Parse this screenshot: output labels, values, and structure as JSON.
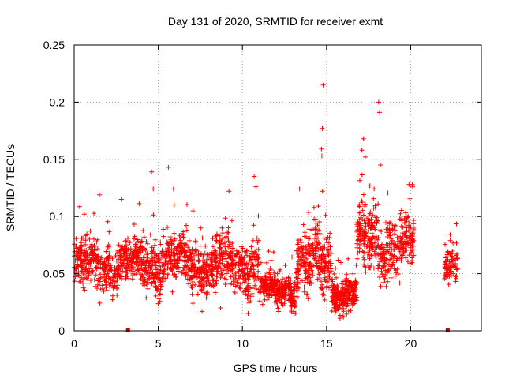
{
  "chart_data": {
    "type": "scatter",
    "title": "Day 131 of 2020, SRMTID for receiver exmt",
    "xlabel": "GPS time / hours",
    "ylabel": "SRMTID / TECUs",
    "xlim": [
      0,
      24.2
    ],
    "ylim": [
      0,
      0.25
    ],
    "xticks": [
      0,
      5,
      10,
      15,
      20
    ],
    "xtick_labels": [
      "0",
      "5",
      "10",
      "15",
      "20"
    ],
    "yticks": [
      0,
      0.05,
      0.1,
      0.15,
      0.2,
      0.25
    ],
    "ytick_labels": [
      "0",
      "0.05",
      "0.1",
      "0.15",
      "0.2",
      "0.25"
    ],
    "grid": true,
    "marker": "+",
    "colors": {
      "series": "#ff0000",
      "frame": "#000000",
      "grid": "#a0a0a0",
      "gap_marker": "#cc0000"
    },
    "gap_markers_x": [
      3.2,
      22.2
    ],
    "series": [
      {
        "name": "SRMTID",
        "segments": [
          {
            "start": 0.0,
            "end": 4.0,
            "base": 0.057,
            "amp": 0.012,
            "spread": 0.017,
            "count": 500
          },
          {
            "start": 4.0,
            "end": 7.0,
            "base": 0.06,
            "amp": 0.012,
            "spread": 0.019,
            "count": 380
          },
          {
            "start": 7.0,
            "end": 10.0,
            "base": 0.058,
            "amp": 0.012,
            "spread": 0.019,
            "count": 380
          },
          {
            "start": 10.0,
            "end": 11.0,
            "base": 0.055,
            "amp": 0.008,
            "spread": 0.02,
            "count": 130
          },
          {
            "start": 11.0,
            "end": 13.2,
            "base": 0.036,
            "amp": 0.006,
            "spread": 0.012,
            "count": 300
          },
          {
            "start": 13.2,
            "end": 15.3,
            "base": 0.058,
            "amp": 0.015,
            "spread": 0.022,
            "count": 280
          },
          {
            "start": 15.3,
            "end": 16.8,
            "base": 0.033,
            "amp": 0.005,
            "spread": 0.013,
            "count": 240
          },
          {
            "start": 16.8,
            "end": 18.0,
            "base": 0.08,
            "amp": 0.012,
            "spread": 0.024,
            "count": 170
          },
          {
            "start": 18.0,
            "end": 20.2,
            "base": 0.075,
            "amp": 0.012,
            "spread": 0.022,
            "count": 260
          },
          {
            "start": 22.0,
            "end": 22.8,
            "base": 0.055,
            "amp": 0.006,
            "spread": 0.014,
            "count": 75
          }
        ],
        "outliers": [
          {
            "x": 1.5,
            "y": 0.119
          },
          {
            "x": 2.8,
            "y": 0.115
          },
          {
            "x": 4.6,
            "y": 0.139
          },
          {
            "x": 4.7,
            "y": 0.124
          },
          {
            "x": 5.6,
            "y": 0.143
          },
          {
            "x": 5.9,
            "y": 0.124
          },
          {
            "x": 9.2,
            "y": 0.122
          },
          {
            "x": 10.7,
            "y": 0.135
          },
          {
            "x": 10.8,
            "y": 0.126
          },
          {
            "x": 14.8,
            "y": 0.215
          },
          {
            "x": 14.75,
            "y": 0.177
          },
          {
            "x": 14.7,
            "y": 0.159
          },
          {
            "x": 14.72,
            "y": 0.153
          },
          {
            "x": 13.4,
            "y": 0.124
          },
          {
            "x": 17.2,
            "y": 0.168
          },
          {
            "x": 17.1,
            "y": 0.158
          },
          {
            "x": 17.3,
            "y": 0.152
          },
          {
            "x": 18.1,
            "y": 0.2
          },
          {
            "x": 18.15,
            "y": 0.191
          },
          {
            "x": 18.2,
            "y": 0.145
          },
          {
            "x": 19.9,
            "y": 0.128
          },
          {
            "x": 20.1,
            "y": 0.128
          },
          {
            "x": 0.6,
            "y": 0.102
          },
          {
            "x": 7.6,
            "y": 0.017
          },
          {
            "x": 8.7,
            "y": 0.02
          },
          {
            "x": 15.8,
            "y": 0.011
          },
          {
            "x": 16.0,
            "y": 0.012
          },
          {
            "x": 12.9,
            "y": 0.018
          }
        ]
      }
    ]
  }
}
